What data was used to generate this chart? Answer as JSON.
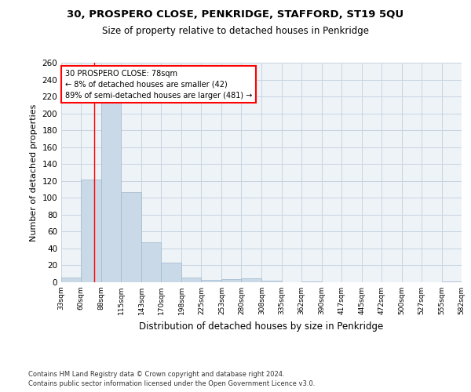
{
  "title_line1": "30, PROSPERO CLOSE, PENKRIDGE, STAFFORD, ST19 5QU",
  "title_line2": "Size of property relative to detached houses in Penkridge",
  "xlabel": "Distribution of detached houses by size in Penkridge",
  "ylabel": "Number of detached properties",
  "bar_edges": [
    33,
    60,
    88,
    115,
    143,
    170,
    198,
    225,
    253,
    280,
    308,
    335,
    362,
    390,
    417,
    445,
    472,
    500,
    527,
    555,
    582
  ],
  "bar_heights": [
    6,
    122,
    218,
    107,
    47,
    23,
    6,
    3,
    4,
    5,
    2,
    0,
    1,
    0,
    0,
    0,
    0,
    0,
    0,
    1
  ],
  "bar_color": "#c9d9e8",
  "bar_edge_color": "#a0b8cc",
  "grid_color": "#c8d4e0",
  "background_color": "#eef3f7",
  "red_line_x": 78,
  "annotation_text": "30 PROSPERO CLOSE: 78sqm\n← 8% of detached houses are smaller (42)\n89% of semi-detached houses are larger (481) →",
  "annotation_box_color": "white",
  "annotation_box_edge": "red",
  "ylim": [
    0,
    260
  ],
  "yticks": [
    0,
    20,
    40,
    60,
    80,
    100,
    120,
    140,
    160,
    180,
    200,
    220,
    240,
    260
  ],
  "footnote1": "Contains HM Land Registry data © Crown copyright and database right 2024.",
  "footnote2": "Contains public sector information licensed under the Open Government Licence v3.0."
}
